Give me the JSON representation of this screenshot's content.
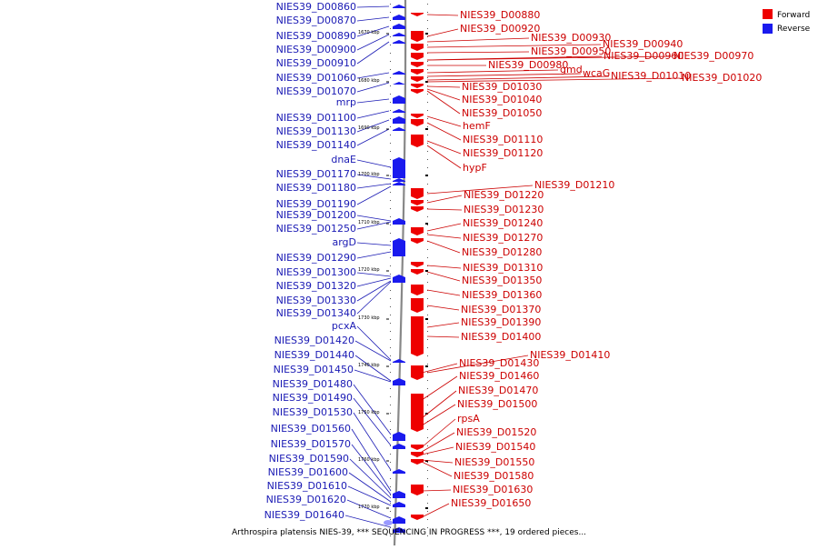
{
  "colors": {
    "forward": "#ee0000",
    "reverse": "#1a1aee",
    "axis": "#888888",
    "label_forward": "#cc0000",
    "label_reverse": "#1a1ab4"
  },
  "legend": {
    "forward": "Forward",
    "reverse": "Reverse"
  },
  "caption": "Arthrospira platensis NIES-39, *** SEQUENCING IN PROGRESS ***, 19 ordered pieces...",
  "ticks": [
    "1670 kbp",
    "1680 kbp",
    "1690 kbp",
    "1700 kbp",
    "1710 kbp",
    "1720 kbp",
    "1730 kbp",
    "1740 kbp",
    "1750 kbp",
    "1760 kbp",
    "1770 kbp"
  ],
  "reverse_labels": [
    "NIES39_D00860",
    "NIES39_D00870",
    "NIES39_D00890",
    "NIES39_D00900",
    "NIES39_D00910",
    "NIES39_D01060",
    "NIES39_D01070",
    "mrp",
    "NIES39_D01100",
    "NIES39_D01130",
    "NIES39_D01140",
    "dnaE",
    "NIES39_D01170",
    "NIES39_D01180",
    "NIES39_D01190",
    "NIES39_D01200",
    "NIES39_D01250",
    "argD",
    "NIES39_D01290",
    "NIES39_D01300",
    "NIES39_D01320",
    "NIES39_D01330",
    "NIES39_D01340",
    "pcxA",
    "NIES39_D01420",
    "NIES39_D01440",
    "NIES39_D01450",
    "NIES39_D01480",
    "NIES39_D01490",
    "NIES39_D01530",
    "NIES39_D01560",
    "NIES39_D01570",
    "NIES39_D01590",
    "NIES39_D01600",
    "NIES39_D01610",
    "NIES39_D01620",
    "NIES39_D01640"
  ],
  "forward_labels": [
    "NIES39_D00880",
    "NIES39_D00920",
    "NIES39_D00930",
    "NIES39_D00940",
    "NIES39_D00950",
    "NIES39_D00960",
    "NIES39_D00970",
    "NIES39_D00980",
    "gmd",
    "wcaG",
    "NIES39_D01010",
    "NIES39_D01020",
    "NIES39_D01030",
    "NIES39_D01040",
    "NIES39_D01050",
    "hemF",
    "NIES39_D01110",
    "NIES39_D01120",
    "hypF",
    "NIES39_D01210",
    "NIES39_D01220",
    "NIES39_D01230",
    "NIES39_D01240",
    "NIES39_D01270",
    "NIES39_D01280",
    "NIES39_D01310",
    "NIES39_D01350",
    "NIES39_D01360",
    "NIES39_D01370",
    "NIES39_D01390",
    "NIES39_D01400",
    "NIES39_D01410",
    "NIES39_D01430",
    "NIES39_D01460",
    "NIES39_D01470",
    "NIES39_D01500",
    "rpsA",
    "NIES39_D01520",
    "NIES39_D01540",
    "NIES39_D01550",
    "NIES39_D01580",
    "NIES39_D01630",
    "NIES39_D01650"
  ]
}
